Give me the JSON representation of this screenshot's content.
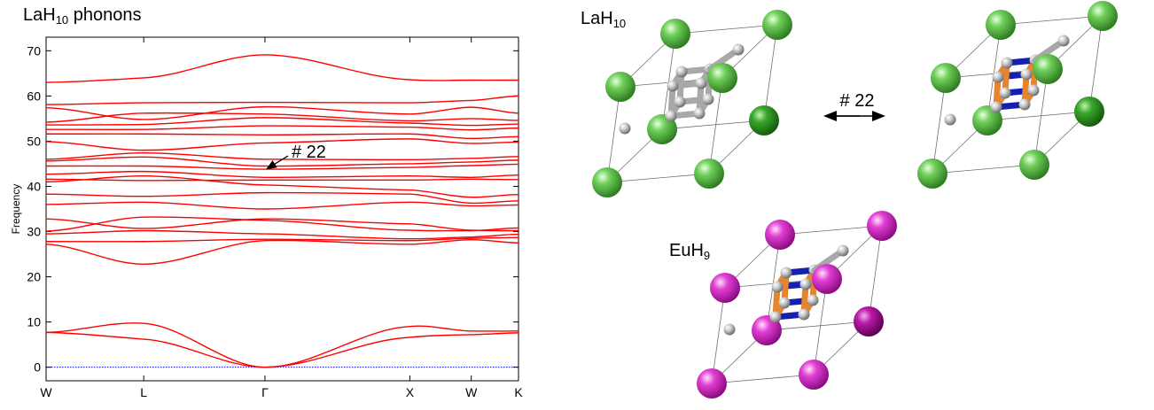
{
  "chart_data": {
    "type": "line",
    "title_main": "LaH",
    "title_sub": "10",
    "title_rest": " phonons",
    "ylabel": "Frequency",
    "xlabel": "",
    "ylim": [
      -3,
      73
    ],
    "yticks": [
      0,
      10,
      20,
      30,
      40,
      50,
      60,
      70
    ],
    "kpoints": [
      "W",
      "L",
      "Γ",
      "X",
      "W",
      "K"
    ],
    "kpos": [
      0,
      1.24,
      2.78,
      4.62,
      5.4,
      6.0
    ],
    "grid": false,
    "line_color": "#ff0000",
    "zero_line_color": "#0000ff",
    "annotation": "# 22",
    "annotation_target": {
      "x": 2.78,
      "y": 43.8
    },
    "series": [
      {
        "values": [
          7.7,
          9.7,
          0.0,
          9.0,
          8.0,
          8.0
        ]
      },
      {
        "values": [
          7.7,
          6.2,
          0.0,
          6.6,
          7.2,
          7.6
        ]
      },
      {
        "values": [
          27.2,
          22.8,
          28.0,
          27.2,
          28.2,
          27.5
        ]
      },
      {
        "values": [
          27.8,
          27.8,
          28.3,
          28.0,
          28.5,
          28.7
        ]
      },
      {
        "values": [
          29.5,
          30.2,
          29.5,
          28.4,
          28.8,
          29.4
        ]
      },
      {
        "values": [
          30.1,
          33.2,
          32.5,
          30.3,
          30.2,
          30.8
        ]
      },
      {
        "values": [
          32.8,
          30.7,
          32.8,
          31.7,
          30.3,
          30.2
        ]
      },
      {
        "values": [
          36.0,
          36.5,
          35.0,
          36.5,
          35.7,
          35.9
        ]
      },
      {
        "values": [
          38.3,
          37.8,
          38.6,
          38.3,
          36.3,
          36.8
        ]
      },
      {
        "values": [
          41.0,
          42.3,
          40.3,
          39.2,
          37.6,
          38.2
        ]
      },
      {
        "values": [
          41.6,
          41.3,
          41.4,
          41.4,
          41.6,
          41.5
        ]
      },
      {
        "values": [
          42.7,
          43.3,
          42.0,
          42.3,
          42.0,
          42.5
        ]
      },
      {
        "values": [
          44.5,
          44.5,
          43.8,
          44.2,
          44.6,
          44.9
        ]
      },
      {
        "values": [
          45.6,
          46.5,
          44.5,
          45.0,
          45.4,
          45.8
        ]
      },
      {
        "values": [
          46.0,
          47.4,
          46.0,
          45.9,
          46.2,
          46.6
        ]
      },
      {
        "values": [
          49.9,
          48.0,
          49.6,
          50.5,
          49.5,
          49.8
        ]
      },
      {
        "values": [
          51.6,
          51.6,
          51.4,
          51.6,
          50.6,
          51.0
        ]
      },
      {
        "values": [
          52.6,
          52.6,
          53.4,
          53.1,
          52.5,
          52.9
        ]
      },
      {
        "values": [
          53.6,
          53.7,
          55.2,
          54.0,
          53.5,
          53.8
        ]
      },
      {
        "values": [
          54.2,
          56.2,
          56.0,
          54.5,
          55.0,
          54.6
        ]
      },
      {
        "values": [
          57.4,
          54.8,
          57.6,
          56.0,
          57.5,
          56.2
        ]
      },
      {
        "values": [
          58.1,
          58.5,
          58.6,
          58.5,
          59.0,
          60.0
        ]
      },
      {
        "values": [
          63.0,
          64.0,
          69.1,
          63.6,
          63.5,
          63.5
        ]
      }
    ]
  },
  "structures": {
    "lah10_label_main": "LaH",
    "lah10_label_sub": "10",
    "euh9_label_main": "EuH",
    "euh9_label_sub": "9",
    "arrow_label": "# 22",
    "colors": {
      "la_atom": "#5cbf4c",
      "la_atom_dark": "#2e8a22",
      "eu_atom": "#e040d0",
      "eu_atom_dark": "#9a1090",
      "h_atom": "#b8b8b8",
      "bond_gray": "#a8a8a8",
      "bond_orange": "#e8842e",
      "bond_blue": "#1420b0",
      "cell_edge": "#6e6e6e"
    }
  }
}
